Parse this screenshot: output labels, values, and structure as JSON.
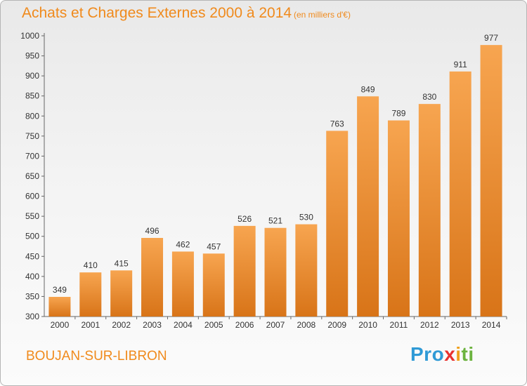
{
  "header": {
    "title": "Achats et Charges Externes 2000 à 2014",
    "subtitle": "(en milliers d'€)"
  },
  "footer": {
    "commune": "BOUJAN-SUR-LIBRON",
    "logo": [
      "Pro",
      "x",
      "i",
      "ti"
    ]
  },
  "colors": {
    "accent": "#f08a1c",
    "bar_top": "#f7a550",
    "bar_bottom": "#d87418"
  },
  "chart_data": {
    "type": "bar",
    "title": "Achats et Charges Externes 2000 à 2014",
    "subtitle": "(en milliers d'€)",
    "categories": [
      "2000",
      "2001",
      "2002",
      "2003",
      "2004",
      "2005",
      "2006",
      "2007",
      "2008",
      "2009",
      "2010",
      "2011",
      "2012",
      "2013",
      "2014"
    ],
    "values": [
      349,
      410,
      415,
      496,
      462,
      457,
      526,
      521,
      530,
      763,
      849,
      789,
      830,
      911,
      977
    ],
    "ylim": [
      300,
      1000
    ],
    "yticks": [
      300,
      350,
      400,
      450,
      500,
      550,
      600,
      650,
      700,
      750,
      800,
      850,
      900,
      950,
      1000
    ],
    "grid": false,
    "data_labels": true
  }
}
